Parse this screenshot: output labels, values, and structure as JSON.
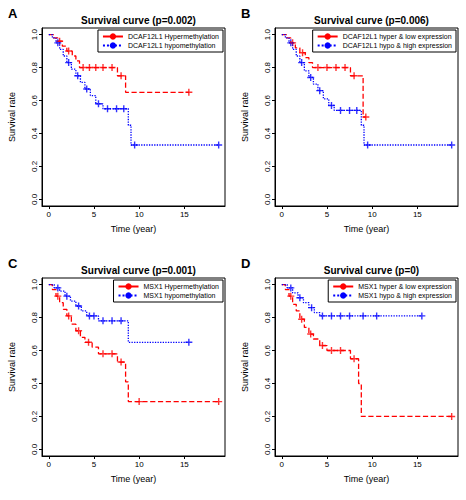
{
  "chart_data": [
    {
      "panel": "A",
      "type": "line",
      "title": "Survival curve (p=0.002)",
      "x_label": "Time (year)",
      "y_label": "Survival rate",
      "xlim": [
        -0.75,
        19.5
      ],
      "ylim": [
        -0.04,
        1.04
      ],
      "xticks": [
        0,
        5,
        10,
        15
      ],
      "yticks": [
        {
          "value": 0,
          "label": "0.0"
        },
        {
          "value": 0.2,
          "label": "0.2"
        },
        {
          "value": 0.4,
          "label": "0.4"
        },
        {
          "value": 0.6,
          "label": "0.6"
        },
        {
          "value": 0.8,
          "label": "0.8"
        },
        {
          "value": 1,
          "label": "1.0"
        }
      ],
      "legend": "top-right",
      "grid": false,
      "series": [
        {
          "name": "DCAF12L1 Hypermethylation",
          "color": "#ff0000",
          "line_style": "dashed",
          "marker": "plus",
          "values": [
            [
              0,
              1
            ],
            [
              0.5,
              0.98
            ],
            [
              1,
              0.96
            ],
            [
              1.5,
              0.93
            ],
            [
              2,
              0.9
            ],
            [
              2.6,
              0.87
            ],
            [
              3,
              0.84
            ],
            [
              3.4,
              0.8
            ],
            [
              7.6,
              0.75
            ],
            [
              8.5,
              0.65
            ],
            [
              15.5,
              0.65
            ]
          ],
          "censored": [
            [
              1.2,
              0.96
            ],
            [
              2.2,
              0.9
            ],
            [
              3.8,
              0.8
            ],
            [
              4.5,
              0.8
            ],
            [
              5.2,
              0.8
            ],
            [
              6,
              0.8
            ],
            [
              7,
              0.8
            ],
            [
              8,
              0.75
            ],
            [
              15.5,
              0.65
            ]
          ]
        },
        {
          "name": "DCAF12L1 hypomethylation",
          "color": "#0000ff",
          "line_style": "dotted",
          "marker": "plus",
          "values": [
            [
              0,
              1
            ],
            [
              0.4,
              0.98
            ],
            [
              0.8,
              0.95
            ],
            [
              1.2,
              0.91
            ],
            [
              1.6,
              0.87
            ],
            [
              2,
              0.83
            ],
            [
              2.5,
              0.79
            ],
            [
              3,
              0.75
            ],
            [
              3.5,
              0.71
            ],
            [
              4,
              0.67
            ],
            [
              4.6,
              0.63
            ],
            [
              5.2,
              0.58
            ],
            [
              6,
              0.55
            ],
            [
              8.8,
              0.45
            ],
            [
              9.1,
              0.33
            ],
            [
              18.8,
              0.33
            ]
          ],
          "censored": [
            [
              1,
              0.95
            ],
            [
              2.2,
              0.83
            ],
            [
              3.2,
              0.75
            ],
            [
              4.2,
              0.67
            ],
            [
              5.5,
              0.58
            ],
            [
              6.5,
              0.55
            ],
            [
              7.5,
              0.55
            ],
            [
              8.3,
              0.55
            ],
            [
              9.5,
              0.33
            ],
            [
              18.8,
              0.33
            ]
          ]
        }
      ]
    },
    {
      "panel": "B",
      "type": "line",
      "title": "Survival curve (p=0.006)",
      "x_label": "Time (year)",
      "y_label": "Survival rate",
      "xlim": [
        -0.75,
        19.5
      ],
      "ylim": [
        -0.04,
        1.04
      ],
      "xticks": [
        0,
        5,
        10,
        15
      ],
      "yticks": [
        {
          "value": 0,
          "label": "0.0"
        },
        {
          "value": 0.2,
          "label": "0.2"
        },
        {
          "value": 0.4,
          "label": "0.4"
        },
        {
          "value": 0.6,
          "label": "0.6"
        },
        {
          "value": 0.8,
          "label": "0.8"
        },
        {
          "value": 1,
          "label": "1.0"
        }
      ],
      "legend": "top-right",
      "grid": false,
      "series": [
        {
          "name": "DCAF12L1 hyper & low expression",
          "color": "#ff0000",
          "line_style": "dashed",
          "marker": "plus",
          "values": [
            [
              0,
              1
            ],
            [
              0.5,
              0.98
            ],
            [
              1,
              0.95
            ],
            [
              1.5,
              0.92
            ],
            [
              2,
              0.89
            ],
            [
              2.6,
              0.86
            ],
            [
              3,
              0.83
            ],
            [
              3.4,
              0.8
            ],
            [
              7.6,
              0.75
            ],
            [
              9,
              0.5
            ],
            [
              9.3,
              0.5
            ]
          ],
          "censored": [
            [
              1.2,
              0.95
            ],
            [
              2.3,
              0.89
            ],
            [
              4,
              0.8
            ],
            [
              5,
              0.8
            ],
            [
              6,
              0.8
            ],
            [
              7,
              0.8
            ],
            [
              8,
              0.75
            ],
            [
              9.3,
              0.5
            ]
          ]
        },
        {
          "name": "DCAF12L1 hypo & high expression",
          "color": "#0000ff",
          "line_style": "dotted",
          "marker": "plus",
          "values": [
            [
              0,
              1
            ],
            [
              0.4,
              0.98
            ],
            [
              0.8,
              0.95
            ],
            [
              1.2,
              0.91
            ],
            [
              1.6,
              0.87
            ],
            [
              2,
              0.83
            ],
            [
              2.5,
              0.78
            ],
            [
              3,
              0.74
            ],
            [
              3.5,
              0.7
            ],
            [
              4,
              0.66
            ],
            [
              4.6,
              0.61
            ],
            [
              5.2,
              0.57
            ],
            [
              5.8,
              0.54
            ],
            [
              8.8,
              0.45
            ],
            [
              9.1,
              0.33
            ],
            [
              18.8,
              0.33
            ]
          ],
          "censored": [
            [
              1,
              0.95
            ],
            [
              2.2,
              0.83
            ],
            [
              3.2,
              0.74
            ],
            [
              4.2,
              0.66
            ],
            [
              5.5,
              0.57
            ],
            [
              6.5,
              0.54
            ],
            [
              7.5,
              0.54
            ],
            [
              8.3,
              0.54
            ],
            [
              9.5,
              0.33
            ],
            [
              18.8,
              0.33
            ]
          ]
        }
      ]
    },
    {
      "panel": "C",
      "type": "line",
      "title": "Survival curve (p=0.001)",
      "x_label": "Time (year)",
      "y_label": "Survival rate",
      "xlim": [
        -0.75,
        19.5
      ],
      "ylim": [
        -0.04,
        1.04
      ],
      "xticks": [
        0,
        5,
        10,
        15
      ],
      "yticks": [
        {
          "value": 0,
          "label": "0.0"
        },
        {
          "value": 0.2,
          "label": "0.2"
        },
        {
          "value": 0.4,
          "label": "0.4"
        },
        {
          "value": 0.6,
          "label": "0.6"
        },
        {
          "value": 0.8,
          "label": "0.8"
        },
        {
          "value": 1,
          "label": "1.0"
        }
      ],
      "legend": "top-right",
      "grid": false,
      "series": [
        {
          "name": "MSX1 Hypermethylation",
          "color": "#ff0000",
          "line_style": "dashed",
          "marker": "plus",
          "values": [
            [
              0,
              1
            ],
            [
              0.4,
              0.97
            ],
            [
              0.8,
              0.93
            ],
            [
              1.2,
              0.89
            ],
            [
              1.6,
              0.85
            ],
            [
              2,
              0.81
            ],
            [
              2.5,
              0.76
            ],
            [
              3,
              0.72
            ],
            [
              3.5,
              0.68
            ],
            [
              4,
              0.65
            ],
            [
              4.8,
              0.62
            ],
            [
              5.5,
              0.58
            ],
            [
              7.6,
              0.53
            ],
            [
              8.5,
              0.41
            ],
            [
              8.8,
              0.29
            ],
            [
              18.8,
              0.29
            ]
          ],
          "censored": [
            [
              1,
              0.93
            ],
            [
              2.2,
              0.81
            ],
            [
              3.3,
              0.72
            ],
            [
              4.4,
              0.65
            ],
            [
              6,
              0.58
            ],
            [
              7,
              0.58
            ],
            [
              8,
              0.53
            ],
            [
              10,
              0.29
            ],
            [
              18.8,
              0.29
            ]
          ]
        },
        {
          "name": "MSX1 hypomethylation",
          "color": "#0000ff",
          "line_style": "dotted",
          "marker": "plus",
          "values": [
            [
              0,
              1
            ],
            [
              0.6,
              0.98
            ],
            [
              1.2,
              0.96
            ],
            [
              1.8,
              0.93
            ],
            [
              2.4,
              0.9
            ],
            [
              3,
              0.87
            ],
            [
              3.6,
              0.84
            ],
            [
              4.2,
              0.81
            ],
            [
              5.5,
              0.78
            ],
            [
              8.8,
              0.65
            ],
            [
              15.5,
              0.65
            ]
          ],
          "censored": [
            [
              1,
              0.98
            ],
            [
              2,
              0.93
            ],
            [
              3.3,
              0.87
            ],
            [
              4.5,
              0.81
            ],
            [
              5,
              0.81
            ],
            [
              6,
              0.78
            ],
            [
              7,
              0.78
            ],
            [
              8,
              0.78
            ],
            [
              15.5,
              0.65
            ]
          ]
        }
      ]
    },
    {
      "panel": "D",
      "type": "line",
      "title": "Survival curve (p=0)",
      "x_label": "Time (year)",
      "y_label": "Survival rate",
      "xlim": [
        -0.75,
        19.5
      ],
      "ylim": [
        -0.04,
        1.04
      ],
      "xticks": [
        0,
        5,
        10,
        15
      ],
      "yticks": [
        {
          "value": 0,
          "label": "0.0"
        },
        {
          "value": 0.2,
          "label": "0.2"
        },
        {
          "value": 0.4,
          "label": "0.4"
        },
        {
          "value": 0.6,
          "label": "0.6"
        },
        {
          "value": 0.8,
          "label": "0.8"
        },
        {
          "value": 1,
          "label": "1.0"
        }
      ],
      "legend": "top-right",
      "grid": false,
      "series": [
        {
          "name": "MSX1 hyper & low expression",
          "color": "#ff0000",
          "line_style": "dashed",
          "marker": "plus",
          "values": [
            [
              0,
              1
            ],
            [
              0.4,
              0.97
            ],
            [
              0.8,
              0.93
            ],
            [
              1.2,
              0.88
            ],
            [
              1.6,
              0.84
            ],
            [
              2,
              0.79
            ],
            [
              2.5,
              0.74
            ],
            [
              3,
              0.7
            ],
            [
              3.5,
              0.67
            ],
            [
              4.2,
              0.63
            ],
            [
              5,
              0.6
            ],
            [
              7.6,
              0.55
            ],
            [
              8.5,
              0.4
            ],
            [
              8.8,
              0.2
            ],
            [
              18.8,
              0.2
            ]
          ],
          "censored": [
            [
              1,
              0.93
            ],
            [
              2.2,
              0.79
            ],
            [
              3.2,
              0.7
            ],
            [
              4.5,
              0.63
            ],
            [
              5.5,
              0.6
            ],
            [
              6.5,
              0.6
            ],
            [
              8,
              0.55
            ],
            [
              18.8,
              0.2
            ]
          ]
        },
        {
          "name": "MSX1 hypo & high expression",
          "color": "#0000ff",
          "line_style": "dotted",
          "marker": "plus",
          "values": [
            [
              0,
              1
            ],
            [
              0.6,
              0.98
            ],
            [
              1.2,
              0.95
            ],
            [
              1.8,
              0.92
            ],
            [
              2.4,
              0.89
            ],
            [
              3,
              0.86
            ],
            [
              3.6,
              0.83
            ],
            [
              4.2,
              0.81
            ],
            [
              15.5,
              0.81
            ]
          ],
          "censored": [
            [
              1,
              0.98
            ],
            [
              2,
              0.92
            ],
            [
              3.3,
              0.86
            ],
            [
              4.5,
              0.81
            ],
            [
              5.5,
              0.81
            ],
            [
              6.5,
              0.81
            ],
            [
              7.5,
              0.81
            ],
            [
              9,
              0.81
            ],
            [
              10.5,
              0.81
            ],
            [
              15.5,
              0.81
            ]
          ]
        }
      ]
    }
  ]
}
